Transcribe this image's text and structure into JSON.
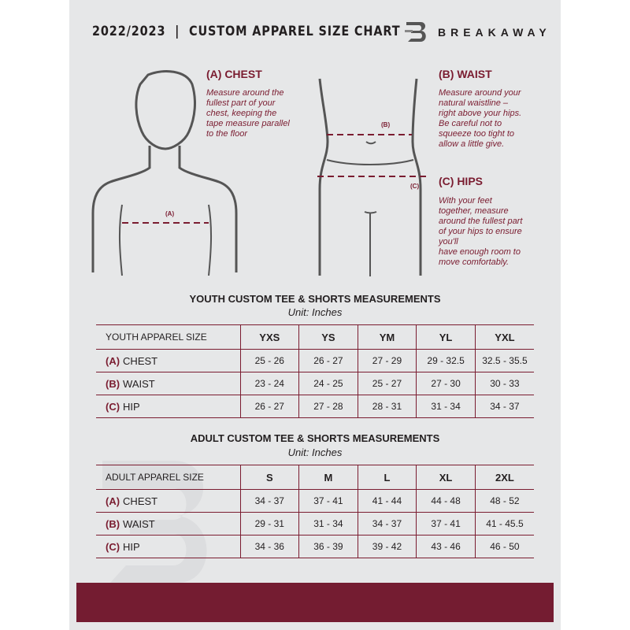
{
  "header": {
    "title": "2022/2023  |  CUSTOM APPAREL SIZE CHART",
    "brand": "BREAKAWAY",
    "logo_letter": "B"
  },
  "guide": {
    "chest": {
      "heading": "(A) CHEST",
      "label": "(A)",
      "text": [
        "Measure around the",
        "fullest part of your",
        "chest, keeping the",
        "tape measure parallel",
        "to the floor"
      ]
    },
    "waist": {
      "heading": "(B) WAIST",
      "label": "(B)",
      "text": [
        "Measure around your",
        "natural waistline –",
        "right above your hips.",
        "Be careful not to",
        "squeeze too tight to",
        "allow a little give."
      ]
    },
    "hips": {
      "heading": "(C) HIPS",
      "label": "(C)",
      "text": [
        "With your feet",
        "together, measure",
        "around the fullest part",
        "of your hips to ensure",
        "you'll",
        "have enough room to",
        "move comfortably."
      ]
    }
  },
  "youth": {
    "title": "YOUTH CUSTOM TEE & SHORTS MEASUREMENTS",
    "unit": "Unit: Inches",
    "size_header": "YOUTH APPAREL SIZE",
    "sizes": [
      "YXS",
      "YS",
      "YM",
      "YL",
      "YXL"
    ],
    "rows": [
      {
        "letter": "(A)",
        "name": "CHEST",
        "values": [
          "25 - 26",
          "26 - 27",
          "27 - 29",
          "29 - 32.5",
          "32.5 - 35.5"
        ]
      },
      {
        "letter": "(B)",
        "name": "WAIST",
        "values": [
          "23 - 24",
          "24 - 25",
          "25 - 27",
          "27 - 30",
          "30 - 33"
        ]
      },
      {
        "letter": "(C)",
        "name": "HIP",
        "values": [
          "26 - 27",
          "27 - 28",
          "28 - 31",
          "31 - 34",
          "34 - 37"
        ]
      }
    ]
  },
  "adult": {
    "title": "ADULT CUSTOM TEE & SHORTS MEASUREMENTS",
    "unit": "Unit: Inches",
    "size_header": "ADULT APPAREL SIZE",
    "sizes": [
      "S",
      "M",
      "L",
      "XL",
      "2XL"
    ],
    "rows": [
      {
        "letter": "(A)",
        "name": "CHEST",
        "values": [
          "34 - 37",
          "37 - 41",
          "41 - 44",
          "44 - 48",
          "48 - 52"
        ]
      },
      {
        "letter": "(B)",
        "name": "WAIST",
        "values": [
          "29 - 31",
          "31 - 34",
          "34 - 37",
          "37 - 41",
          "41 - 45.5"
        ]
      },
      {
        "letter": "(C)",
        "name": "HIP",
        "values": [
          "34 - 36",
          "36 - 39",
          "39 - 42",
          "43 - 46",
          "46 - 50"
        ]
      }
    ]
  },
  "colors": {
    "accent": "#7a1c30",
    "background": "#e6e7e8",
    "band": "#741c31"
  }
}
